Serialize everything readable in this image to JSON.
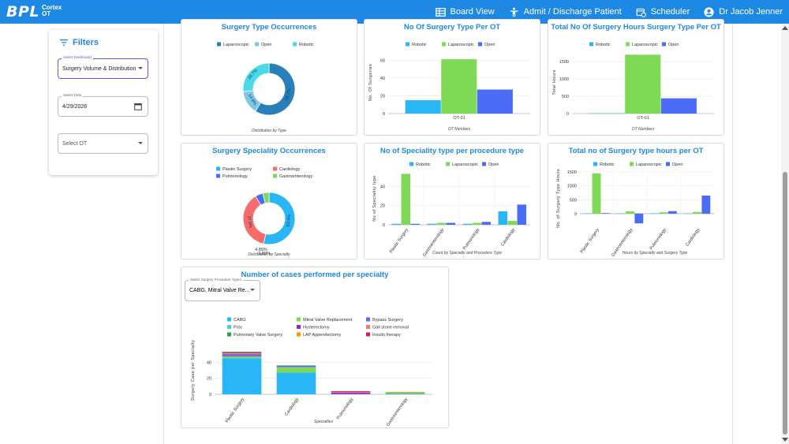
{
  "header": {
    "logo_main": "BPL",
    "logo_sub1": "Cortex",
    "logo_sub2": "OT",
    "nav": [
      {
        "label": "Board View",
        "icon": "board-icon"
      },
      {
        "label": "Admit / Discharge Patient",
        "icon": "person-icon"
      },
      {
        "label": "Scheduler",
        "icon": "scheduler-icon"
      },
      {
        "label": "Dr Jacob Jenner",
        "icon": "account-icon"
      }
    ]
  },
  "filters": {
    "title": "Filters",
    "dashboard_label": "Select Dashboard",
    "dashboard_value": "Surgery Volume & Distribution",
    "date_label": "Select Date",
    "date_value": "4/29/2026",
    "ot_placeholder": "Select OT"
  },
  "colors": {
    "robotic": "#29b6f6",
    "laparoscopic": "#7ed957",
    "open": "#4a6cf7",
    "accent": "#1e88e5"
  },
  "chart_data": [
    {
      "id": "c1",
      "type": "pie",
      "title": "Surgery Type Occurrences",
      "xlabel": "Distribution by Type",
      "legend": [
        "Laparoscopic",
        "Open",
        "Robotic"
      ],
      "colors": [
        "#2980b9",
        "#7ec8e3",
        "#4ad9e8"
      ],
      "values": [
        59.2,
        14.8,
        26.7
      ],
      "labels": [
        "59.2%",
        "14.8%",
        "26.7%"
      ]
    },
    {
      "id": "c2",
      "type": "bar",
      "title": "No Of Surgery Type Per OT",
      "xlabel": "OT Numbers",
      "ylabel": "No. Of Surgeries",
      "categories": [
        "OT-01"
      ],
      "ylim": [
        0,
        70
      ],
      "yticks": [
        0,
        20,
        40,
        60
      ],
      "series": [
        {
          "name": "Robotic",
          "color": "#29b6f6",
          "values": [
            15
          ]
        },
        {
          "name": "Laparoscopic",
          "color": "#7ed957",
          "values": [
            61
          ]
        },
        {
          "name": "Open",
          "color": "#4a6cf7",
          "values": [
            27
          ]
        }
      ]
    },
    {
      "id": "c3",
      "type": "bar",
      "title": "Total No Of Surgery Hours Surgery Type Per OT",
      "xlabel": "OT Numbers",
      "ylabel": "Total Hours",
      "categories": [
        "OT-01"
      ],
      "ylim": [
        0,
        1800
      ],
      "yticks": [
        0,
        500,
        1000,
        1500
      ],
      "series": [
        {
          "name": "Robotic",
          "color": "#29b6f6",
          "values": [
            10
          ]
        },
        {
          "name": "Laparoscopic",
          "color": "#7ed957",
          "values": [
            1700
          ]
        },
        {
          "name": "Open",
          "color": "#4a6cf7",
          "values": [
            440
          ]
        }
      ]
    },
    {
      "id": "c4",
      "type": "pie",
      "title": "Surgery Speciality Occurrences",
      "xlabel": "Distribution by Specialty",
      "legend": [
        "Plastic Surgery",
        "Cardiology",
        "Pulmonology",
        "Gastroenterology"
      ],
      "colors": [
        "#29b6f6",
        "#f76b6b",
        "#4a6cf7",
        "#7ed957"
      ],
      "values": [
        53.4,
        37.9,
        4.85,
        3.88
      ],
      "labels": [
        "53.4%",
        "37.9%",
        "4.85%",
        "3.88%"
      ]
    },
    {
      "id": "c5",
      "type": "bar",
      "title": "No of Speciality type per procedure type",
      "xlabel": "Count by Specialty and Procedure Type",
      "ylabel": "No of Speciality type",
      "categories": [
        "Plastic Surgery",
        "Gastroenterology",
        "Pulmonology",
        "Cardiology"
      ],
      "ylim": [
        0,
        55
      ],
      "yticks": [
        0,
        20,
        40
      ],
      "series": [
        {
          "name": "Robotic",
          "color": "#29b6f6",
          "values": [
            1,
            1,
            1,
            14
          ]
        },
        {
          "name": "Laparoscopic",
          "color": "#7ed957",
          "values": [
            53,
            2,
            2,
            4
          ]
        },
        {
          "name": "Open",
          "color": "#4a6cf7",
          "values": [
            1,
            2,
            3,
            21
          ]
        }
      ]
    },
    {
      "id": "c6",
      "type": "bar",
      "title": "Total no of Surgery type hours per OT",
      "xlabel": "Hours by Specialty and Surgery Type",
      "ylabel": "No. of Surgery Type Hours",
      "categories": [
        "Plastic Surgery",
        "Gastroenterology",
        "Pulmonology",
        "Cardiology"
      ],
      "ylim": [
        -400,
        1500
      ],
      "yticks": [
        0,
        500,
        1000,
        1500
      ],
      "series": [
        {
          "name": "Robotic",
          "color": "#29b6f6",
          "values": [
            10,
            10,
            10,
            10
          ]
        },
        {
          "name": "Laparoscopic",
          "color": "#7ed957",
          "values": [
            1450,
            80,
            50,
            60
          ]
        },
        {
          "name": "Open",
          "color": "#4a6cf7",
          "values": [
            20,
            -350,
            90,
            650
          ]
        }
      ]
    },
    {
      "id": "c7",
      "type": "bar",
      "stacked": true,
      "title": "Number of cases performed per specialty",
      "xlabel": "Specialties",
      "ylabel": "Surgery Case per Specialty",
      "select_label": "Select Surgery Procedure Types",
      "select_value": "CABG, Mitral Valve Re...",
      "categories": [
        "Plastic Surgery",
        "Cardiology",
        "Pulmonology",
        "Gastroenterology"
      ],
      "ylim": [
        0,
        60
      ],
      "yticks": [
        0,
        20,
        40
      ],
      "series": [
        {
          "name": "CABG",
          "color": "#29b6f6",
          "values": [
            45,
            27,
            0,
            1
          ]
        },
        {
          "name": "Mitral Valve Replacement",
          "color": "#7ed957",
          "values": [
            2,
            7,
            0,
            1
          ]
        },
        {
          "name": "Bypass Surgery",
          "color": "#5b6ee8",
          "values": [
            2,
            2,
            1,
            0
          ]
        },
        {
          "name": "Proc",
          "color": "#4dd0c8",
          "values": [
            0,
            0,
            0,
            0
          ]
        },
        {
          "name": "Hysterectomy",
          "color": "#9c27b0",
          "values": [
            1,
            0,
            1,
            0
          ]
        },
        {
          "name": "Gall stone removal",
          "color": "#f07b7b",
          "values": [
            1,
            0,
            1,
            0
          ]
        },
        {
          "name": "Pulmonary Valve Surgery",
          "color": "#2ea043",
          "values": [
            1,
            0,
            0,
            0
          ]
        },
        {
          "name": "LAP Appendectomy",
          "color": "#ff9800",
          "values": [
            0,
            0,
            0,
            1
          ]
        },
        {
          "name": "Insulin therapy",
          "color": "#d81b60",
          "values": [
            1,
            0,
            1,
            0
          ]
        }
      ]
    }
  ]
}
